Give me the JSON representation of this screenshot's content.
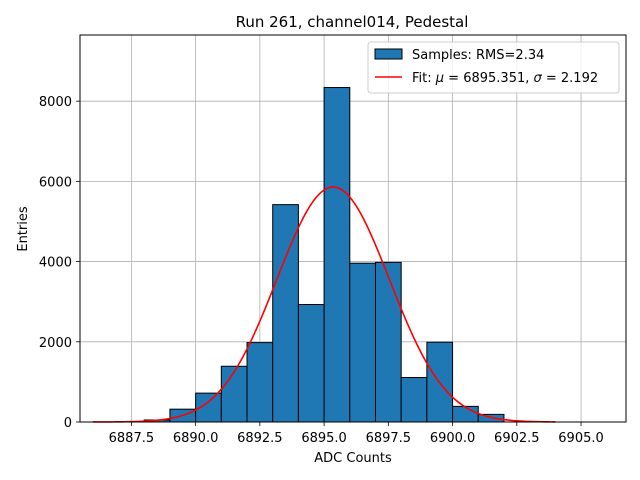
{
  "chart_data": {
    "type": "bar",
    "title": "Run 261, channel014, Pedestal",
    "xlabel": "ADC Counts",
    "ylabel": "Entries",
    "xlim": [
      6885.5,
      6906.75
    ],
    "ylim": [
      0,
      9650
    ],
    "xticks": [
      6887.5,
      6890.0,
      6892.5,
      6895.0,
      6897.5,
      6900.0,
      6902.5,
      6905.0
    ],
    "xtick_labels": [
      "6887.5",
      "6890.0",
      "6892.5",
      "6895.0",
      "6897.5",
      "6900.0",
      "6902.5",
      "6905.0"
    ],
    "yticks": [
      0,
      2000,
      4000,
      6000,
      8000
    ],
    "ytick_labels": [
      "0",
      "2000",
      "4000",
      "6000",
      "8000"
    ],
    "grid": true,
    "legend_position": "top-right",
    "histogram": {
      "name": "Samples: RMS=2.34",
      "color": "#1f77b4",
      "edge_color": "#000000",
      "bin_edges": [
        6888,
        6889,
        6890,
        6891,
        6892,
        6893,
        6894,
        6895,
        6896,
        6897,
        6898,
        6899,
        6900,
        6901,
        6902
      ],
      "counts": [
        50,
        320,
        720,
        1390,
        1980,
        5420,
        2930,
        8340,
        3960,
        3980,
        1110,
        1990,
        390,
        190
      ]
    },
    "fit": {
      "name_prefix": "Fit: ",
      "name_mu": "μ",
      "name_mid": " = 6895.351, ",
      "name_sigma": "σ",
      "name_suffix": " = 2.192",
      "color": "#ff0000",
      "mu": 6895.351,
      "sigma": 2.192,
      "amplitude": 5860,
      "x_range": [
        6886.0,
        6904.0
      ]
    }
  }
}
